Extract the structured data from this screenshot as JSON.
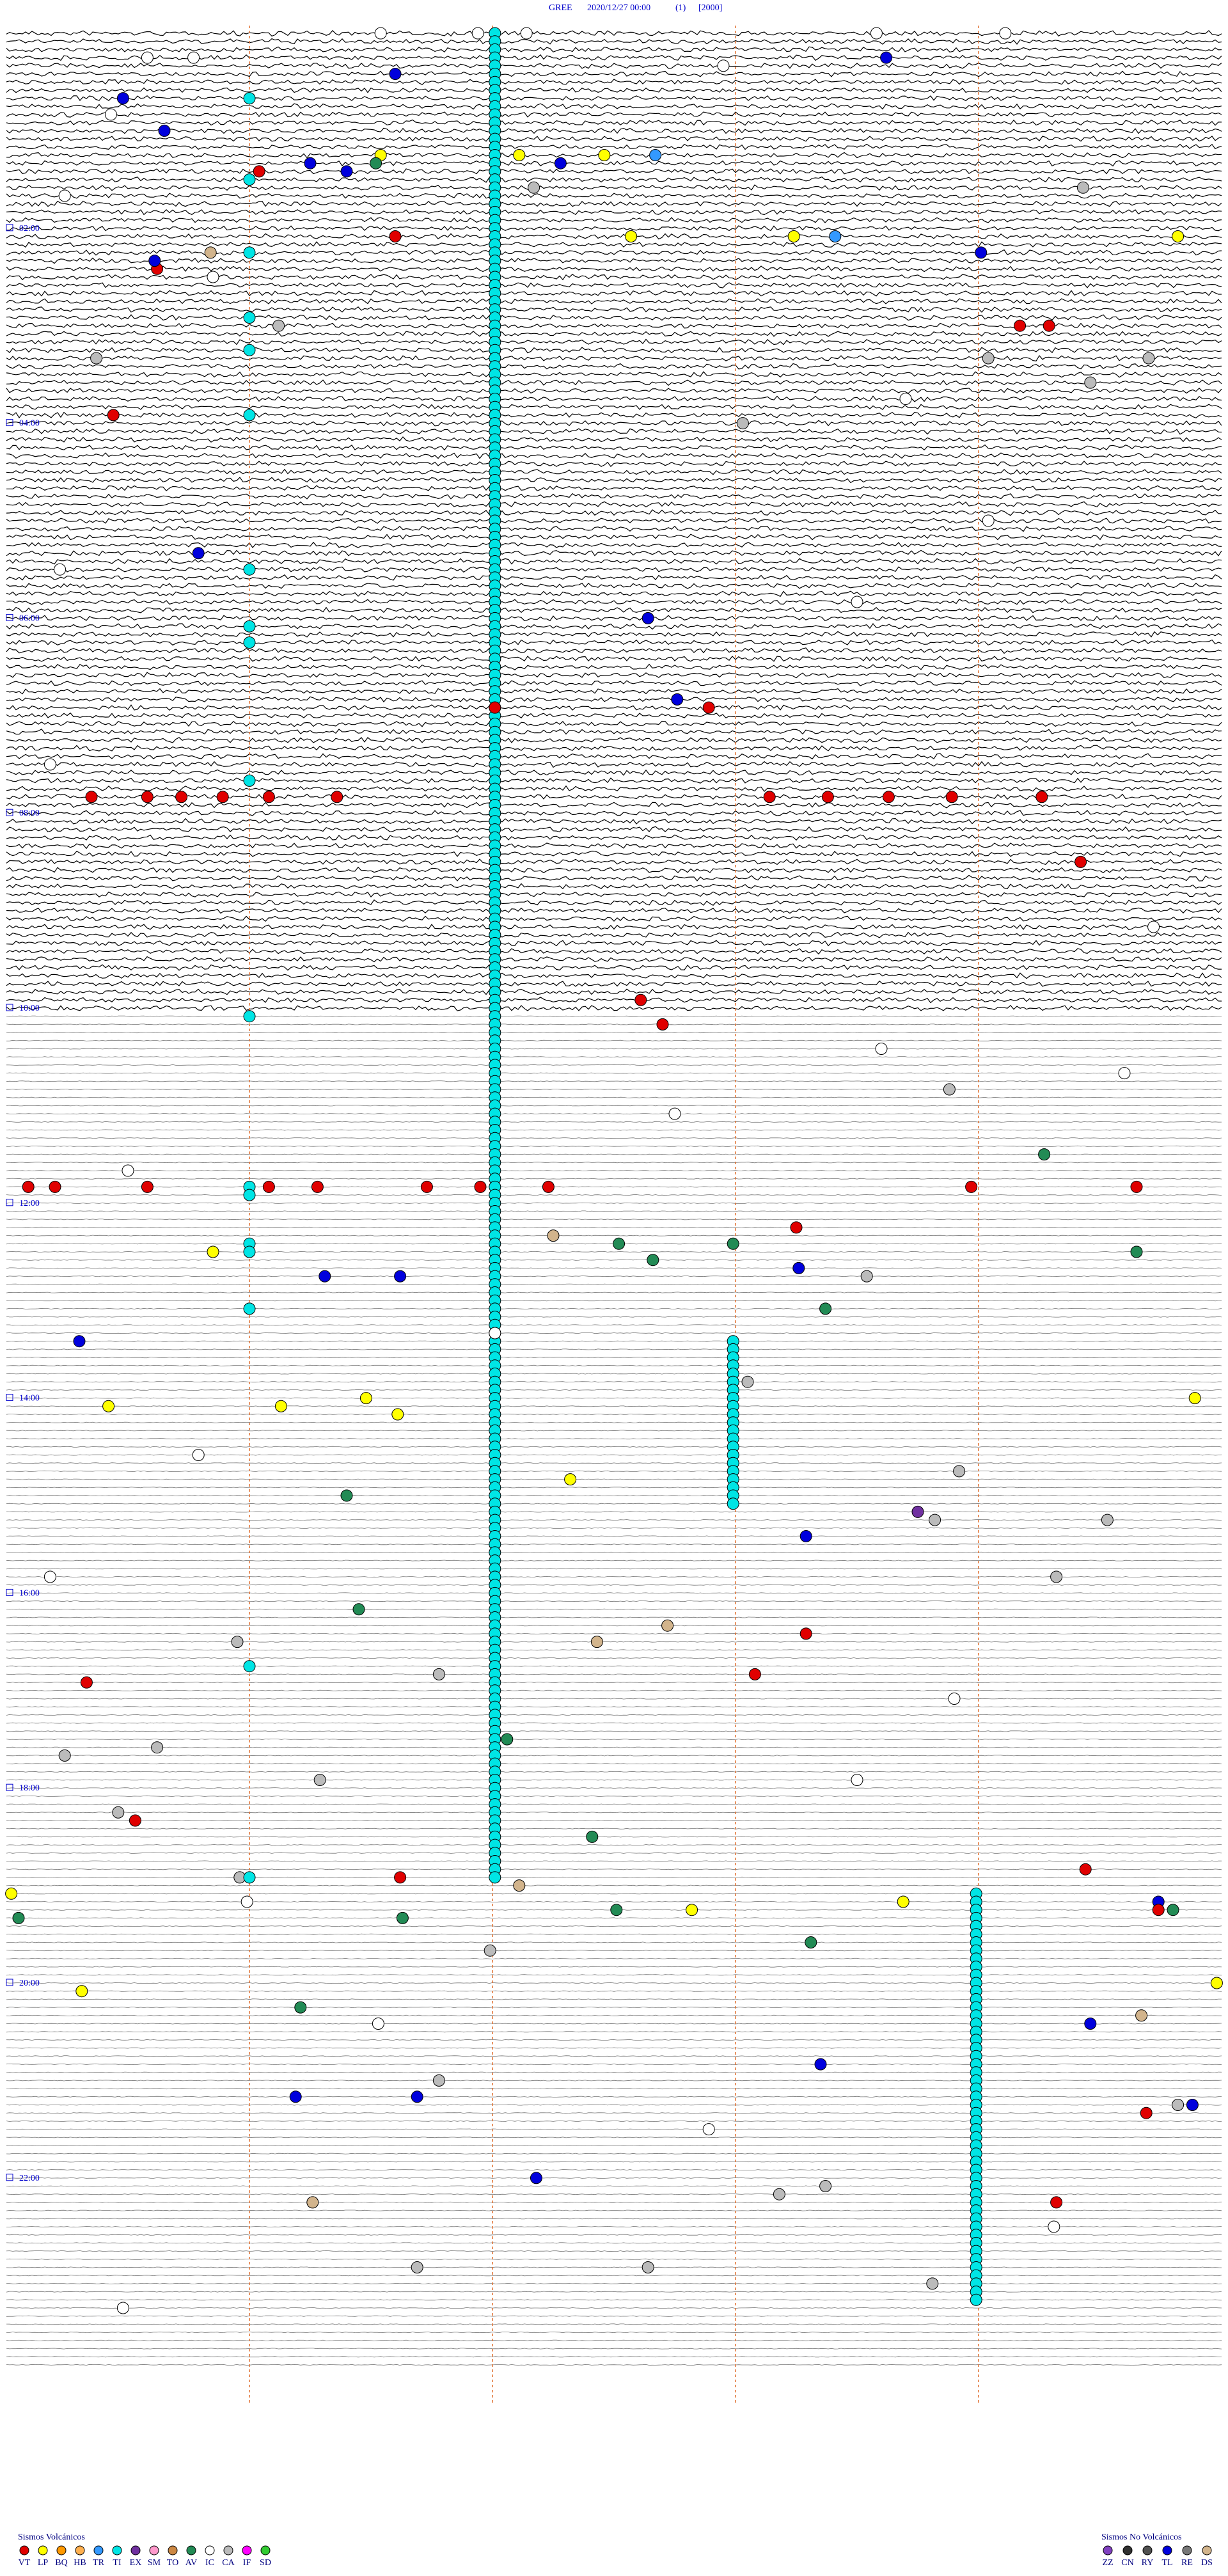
{
  "title": {
    "station": "GREE",
    "datetime": "2020/12/27 00:00",
    "index": "(1)",
    "scale": "[2000]"
  },
  "hour_labels": [
    "02:00",
    "04:00",
    "06:00",
    "08:00",
    "10:00",
    "12:00",
    "14:00",
    "16:00",
    "18:00",
    "20:00",
    "22:00"
  ],
  "legend": {
    "volcanic": {
      "title": "Sismos Volcánicos",
      "codes": [
        "VT",
        "LP",
        "BQ",
        "HB",
        "TR",
        "TI",
        "EX",
        "SM",
        "TO",
        "AV",
        "IC",
        "CA",
        "IF",
        "SD"
      ],
      "colors": [
        "#e00000",
        "#ffff00",
        "#ff9900",
        "#ffb050",
        "#3399ff",
        "#00e5e5",
        "#7030a0",
        "#ff99cc",
        "#cc8844",
        "#228b55",
        "#ffffff",
        "#bbbbbb",
        "#ff00ff",
        "#33cc33"
      ]
    },
    "non_volcanic": {
      "title": "Sismos No Volcánicos",
      "codes": [
        "ZZ",
        "CN",
        "RY",
        "TL",
        "RE",
        "DS"
      ],
      "colors": [
        "#8040c0",
        "#303030",
        "#505050",
        "#0000dd",
        "#777777",
        "#d2b48c"
      ]
    }
  },
  "runs": [
    {
      "type": "TI",
      "minute": 2.01,
      "lines": [
        0,
        227
      ]
    },
    {
      "type": "TI",
      "minute": 2.99,
      "lines": [
        161,
        181
      ]
    },
    {
      "type": "TI",
      "minute": 3.99,
      "lines": [
        229,
        279
      ]
    }
  ],
  "events": [
    [
      "VT",
      17,
      1.04
    ],
    [
      "TL",
      5,
      1.6
    ],
    [
      "TL",
      8,
      0.48
    ],
    [
      "TL",
      12,
      0.65
    ],
    [
      "LP",
      15,
      1.54
    ],
    [
      "AV",
      16,
      1.52
    ],
    [
      "TL",
      17,
      1.4
    ],
    [
      "TL",
      16,
      1.25
    ],
    [
      "TL",
      16,
      2.28
    ],
    [
      "LP",
      15,
      2.11
    ],
    [
      "LP",
      15,
      2.46
    ],
    [
      "TR",
      15,
      2.67
    ],
    [
      "TL",
      3,
      3.62
    ],
    [
      "VT",
      25,
      1.6
    ],
    [
      "LP",
      25,
      2.57
    ],
    [
      "LP",
      25,
      3.24
    ],
    [
      "TR",
      25,
      3.41
    ],
    [
      "TL",
      27,
      4.01
    ],
    [
      "LP",
      25,
      4.82
    ],
    [
      "VT",
      29,
      0.62
    ],
    [
      "TL",
      28,
      0.61
    ],
    [
      "VT",
      36,
      4.17
    ],
    [
      "VT",
      36,
      4.29
    ],
    [
      "VT",
      47,
      0.44
    ],
    [
      "TL",
      64,
      0.79
    ],
    [
      "TL",
      72,
      2.64
    ],
    [
      "VT",
      83,
      2.01
    ],
    [
      "TL",
      82,
      2.76
    ],
    [
      "VT",
      83,
      2.89
    ],
    [
      "VT",
      94,
      0.35
    ],
    [
      "VT",
      94,
      0.58
    ],
    [
      "VT",
      94,
      0.72
    ],
    [
      "VT",
      94,
      0.89
    ],
    [
      "VT",
      94,
      1.08
    ],
    [
      "VT",
      94,
      1.36
    ],
    [
      "VT",
      94,
      3.14
    ],
    [
      "VT",
      94,
      3.38
    ],
    [
      "VT",
      94,
      3.63
    ],
    [
      "VT",
      94,
      3.89
    ],
    [
      "VT",
      94,
      4.26
    ],
    [
      "VT",
      102,
      4.42
    ],
    [
      "VT",
      119,
      2.61
    ],
    [
      "VT",
      122,
      2.7
    ],
    [
      "VT",
      142,
      0.09
    ],
    [
      "VT",
      142,
      0.2
    ],
    [
      "VT",
      142,
      0.58
    ],
    [
      "VT",
      142,
      1.08
    ],
    [
      "VT",
      142,
      1.28
    ],
    [
      "VT",
      142,
      1.73
    ],
    [
      "VT",
      142,
      1.95
    ],
    [
      "VT",
      142,
      2.23
    ],
    [
      "VT",
      142,
      3.97
    ],
    [
      "VT",
      142,
      4.65
    ],
    [
      "LP",
      150,
      0.85
    ],
    [
      "TL",
      153,
      1.31
    ],
    [
      "TL",
      153,
      1.62
    ],
    [
      "TL",
      161,
      0.3
    ],
    [
      "VT",
      147,
      3.25
    ],
    [
      "TL",
      152,
      3.26
    ],
    [
      "LP",
      169,
      0.42
    ],
    [
      "LP",
      169,
      1.13
    ],
    [
      "LP",
      168,
      1.48
    ],
    [
      "LP",
      170,
      1.61
    ],
    [
      "LP",
      178,
      2.32
    ],
    [
      "LP",
      168,
      4.89
    ],
    [
      "EX",
      182,
      3.75
    ],
    [
      "TL",
      185,
      3.29
    ],
    [
      "VT",
      197,
      3.29
    ],
    [
      "VT",
      203,
      0.33
    ],
    [
      "VT",
      202,
      3.08
    ],
    [
      "VT",
      220,
      0.53
    ],
    [
      "VT",
      227,
      1.62
    ],
    [
      "VT",
      226,
      4.44
    ],
    [
      "LP",
      229,
      0.02
    ],
    [
      "LP",
      231,
      2.82
    ],
    [
      "LP",
      230,
      3.69
    ],
    [
      "LP",
      241,
      0.31
    ],
    [
      "LP",
      240,
      4.98
    ],
    [
      "TL",
      230,
      4.74
    ],
    [
      "VT",
      231,
      4.74
    ],
    [
      "TL",
      245,
      4.46
    ],
    [
      "TL",
      250,
      3.35
    ],
    [
      "TL",
      254,
      1.19
    ],
    [
      "TL",
      254,
      1.69
    ],
    [
      "TL",
      255,
      4.88
    ],
    [
      "VT",
      256,
      4.69
    ],
    [
      "TL",
      264,
      2.18
    ],
    [
      "VT",
      267,
      4.32
    ],
    [
      "AV",
      194,
      1.45
    ],
    [
      "AV",
      210,
      2.06
    ],
    [
      "AV",
      222,
      2.41
    ],
    [
      "AV",
      231,
      2.51
    ],
    [
      "AV",
      232,
      1.63
    ],
    [
      "AV",
      232,
      0.05
    ],
    [
      "AV",
      243,
      1.21
    ],
    [
      "AV",
      235,
      3.31
    ],
    [
      "AV",
      231,
      4.8
    ],
    [
      "AV",
      150,
      4.65
    ],
    [
      "AV",
      138,
      4.27
    ],
    [
      "AV",
      149,
      2.52
    ],
    [
      "AV",
      151,
      2.66
    ],
    [
      "AV",
      149,
      2.99
    ],
    [
      "AV",
      157,
      3.37
    ],
    [
      "AV",
      180,
      1.4
    ],
    [
      "CA",
      198,
      0.95
    ],
    [
      "CA",
      212,
      0.24
    ],
    [
      "CA",
      211,
      0.62
    ],
    [
      "CA",
      215,
      1.29
    ],
    [
      "CA",
      219,
      0.46
    ],
    [
      "CA",
      202,
      1.78
    ],
    [
      "CA",
      236,
      1.99
    ],
    [
      "CA",
      130,
      3.88
    ],
    [
      "CA",
      166,
      3.05
    ],
    [
      "CA",
      153,
      3.54
    ],
    [
      "CA",
      177,
      3.92
    ],
    [
      "CA",
      183,
      3.82
    ],
    [
      "CA",
      183,
      4.53
    ],
    [
      "CA",
      190,
      4.32
    ],
    [
      "CA",
      43,
      4.46
    ],
    [
      "CA",
      48,
      3.03
    ],
    [
      "CA",
      40,
      4.7
    ],
    [
      "CA",
      40,
      4.04
    ],
    [
      "CA",
      36,
      1.12
    ],
    [
      "CA",
      40,
      0.37
    ],
    [
      "CA",
      19,
      2.17
    ],
    [
      "CA",
      19,
      4.43
    ],
    [
      "CA",
      255,
      4.82
    ],
    [
      "CA",
      252,
      1.78
    ],
    [
      "CA",
      266,
      3.18
    ],
    [
      "CA",
      265,
      3.37
    ],
    [
      "CA",
      275,
      2.64
    ],
    [
      "CA",
      275,
      1.69
    ],
    [
      "CA",
      277,
      3.81
    ],
    [
      "CA",
      227,
      0.96
    ],
    [
      "DS",
      27,
      0.84
    ],
    [
      "DS",
      196,
      2.72
    ],
    [
      "DS",
      198,
      2.43
    ],
    [
      "DS",
      148,
      2.25
    ],
    [
      "DS",
      244,
      4.67
    ],
    [
      "DS",
      267,
      1.26
    ],
    [
      "DS",
      228,
      2.11
    ],
    [
      "IC",
      0,
      1.54
    ],
    [
      "IC",
      0,
      1.94
    ],
    [
      "IC",
      0,
      2.14
    ],
    [
      "IC",
      0,
      3.58
    ],
    [
      "IC",
      0,
      4.11
    ],
    [
      "IC",
      3,
      0.58
    ],
    [
      "IC",
      3,
      0.77
    ],
    [
      "IC",
      4,
      2.95
    ],
    [
      "IC",
      10,
      0.43
    ],
    [
      "IC",
      20,
      0.24
    ],
    [
      "IC",
      30,
      0.85
    ],
    [
      "IC",
      45,
      3.7
    ],
    [
      "IC",
      60,
      4.04
    ],
    [
      "IC",
      66,
      0.22
    ],
    [
      "IC",
      70,
      3.5
    ],
    [
      "IC",
      90,
      0.18
    ],
    [
      "IC",
      110,
      4.72
    ],
    [
      "IC",
      125,
      3.6
    ],
    [
      "IC",
      128,
      4.6
    ],
    [
      "IC",
      133,
      2.75
    ],
    [
      "IC",
      140,
      0.5
    ],
    [
      "IC",
      160,
      2.01
    ],
    [
      "IC",
      175,
      0.79
    ],
    [
      "IC",
      190,
      0.18
    ],
    [
      "IC",
      205,
      3.9
    ],
    [
      "IC",
      215,
      3.5
    ],
    [
      "IC",
      230,
      0.99
    ],
    [
      "IC",
      245,
      1.53
    ],
    [
      "IC",
      258,
      2.89
    ],
    [
      "IC",
      270,
      4.31
    ],
    [
      "IC",
      280,
      0.48
    ],
    [
      "TI",
      8,
      1.0
    ],
    [
      "TI",
      18,
      1.0
    ],
    [
      "TI",
      27,
      1.0
    ],
    [
      "TI",
      35,
      1.0
    ],
    [
      "TI",
      39,
      1.0
    ],
    [
      "TI",
      47,
      1.0
    ],
    [
      "TI",
      66,
      1.0
    ],
    [
      "TI",
      73,
      1.0
    ],
    [
      "TI",
      75,
      1.0
    ],
    [
      "TI",
      92,
      1.0
    ],
    [
      "TI",
      121,
      1.0
    ],
    [
      "TI",
      142,
      1.0
    ],
    [
      "TI",
      143,
      1.0
    ],
    [
      "TI",
      149,
      1.0
    ],
    [
      "TI",
      150,
      1.0
    ],
    [
      "TI",
      157,
      1.0
    ],
    [
      "TI",
      201,
      1.0
    ],
    [
      "TI",
      227,
      1.0
    ]
  ]
}
